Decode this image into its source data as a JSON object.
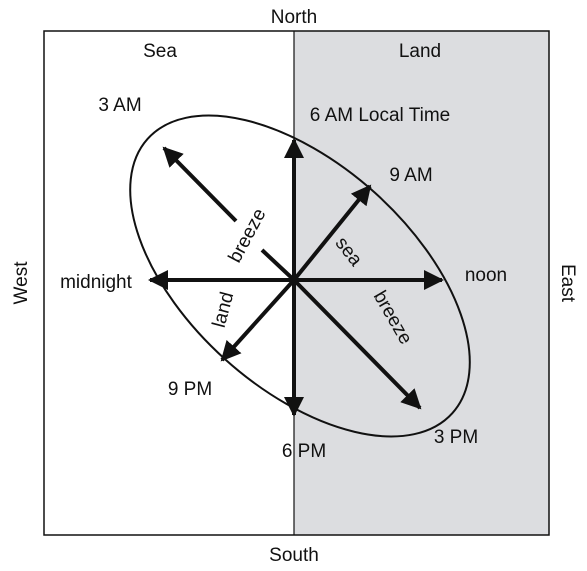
{
  "compass": {
    "north": "North",
    "south": "South",
    "west": "West",
    "east": "East"
  },
  "regions": {
    "sea": "Sea",
    "land": "Land"
  },
  "times": {
    "six_am": "6 AM Local Time",
    "nine_am": "9 AM",
    "noon": "noon",
    "three_pm": "3 PM",
    "six_pm": "6 PM",
    "nine_pm": "9 PM",
    "midnight": "midnight",
    "three_am": "3 AM"
  },
  "breeze_labels": {
    "land": "land",
    "land_breeze": "breeze",
    "sea": "sea",
    "sea_breeze": "breeze"
  }
}
